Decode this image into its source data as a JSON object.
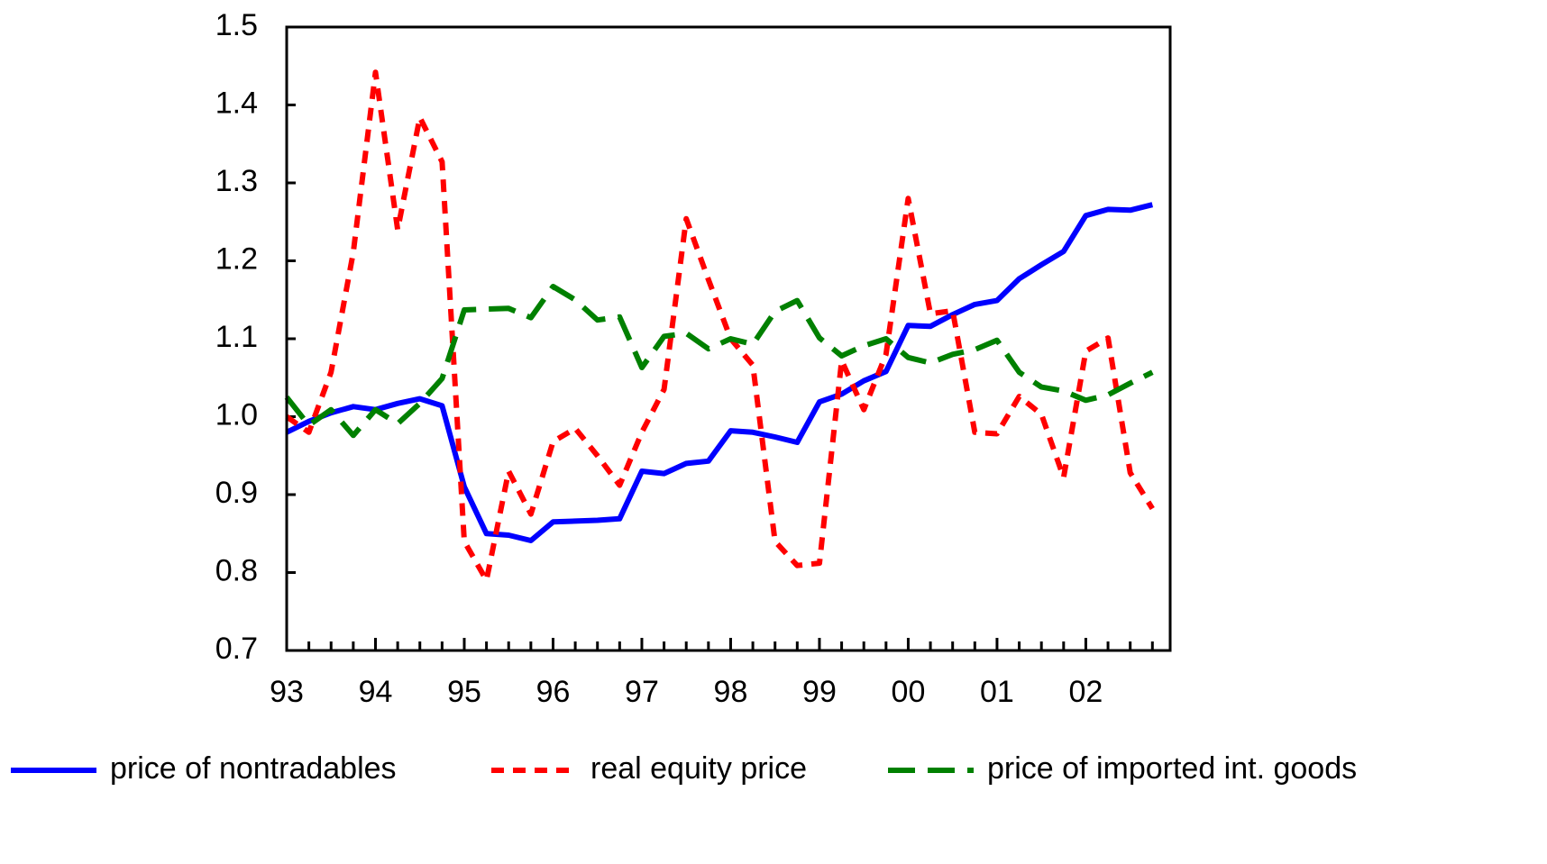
{
  "chart_data": {
    "type": "line",
    "categories": [
      "93",
      null,
      null,
      null,
      "94",
      null,
      null,
      null,
      "95",
      null,
      null,
      null,
      "96",
      null,
      null,
      null,
      "97",
      null,
      null,
      null,
      "98",
      null,
      null,
      null,
      "99",
      null,
      null,
      null,
      "00",
      null,
      null,
      null,
      "01",
      null,
      null,
      null,
      "02",
      null,
      null,
      null
    ],
    "series": [
      {
        "name": "price of nontradables",
        "color": "#0000ff",
        "dash": "solid",
        "values": [
          0.98,
          0.994,
          1.005,
          1.013,
          1.009,
          1.017,
          1.023,
          1.014,
          0.91,
          0.85,
          0.848,
          0.841,
          0.865,
          0.866,
          0.867,
          0.869,
          0.93,
          0.927,
          0.94,
          0.943,
          0.982,
          0.98,
          0.974,
          0.967,
          1.019,
          1.029,
          1.046,
          1.058,
          1.117,
          1.116,
          1.131,
          1.144,
          1.149,
          1.177,
          1.195,
          1.212,
          1.258,
          1.266,
          1.265,
          1.272
        ]
      },
      {
        "name": "real equity price",
        "color": "#ff0000",
        "dash": "short",
        "values": [
          1.0,
          0.98,
          1.057,
          1.211,
          1.442,
          1.24,
          1.384,
          1.327,
          0.84,
          0.79,
          0.93,
          0.875,
          0.968,
          0.985,
          0.95,
          0.912,
          0.98,
          1.035,
          1.254,
          1.176,
          1.1,
          1.066,
          0.84,
          0.809,
          0.812,
          1.072,
          1.009,
          1.08,
          1.28,
          1.132,
          1.136,
          0.98,
          0.978,
          1.026,
          1.003,
          0.922,
          1.084,
          1.101,
          0.928,
          0.882
        ]
      },
      {
        "name": "price of imported int. goods",
        "color": "#008000",
        "dash": "long",
        "values": [
          1.025,
          0.989,
          1.009,
          0.976,
          1.009,
          0.991,
          1.017,
          1.049,
          1.137,
          1.138,
          1.139,
          1.127,
          1.167,
          1.15,
          1.124,
          1.128,
          1.063,
          1.103,
          1.107,
          1.087,
          1.1,
          1.093,
          1.135,
          1.149,
          1.101,
          1.078,
          1.091,
          1.1,
          1.076,
          1.069,
          1.08,
          1.086,
          1.098,
          1.057,
          1.038,
          1.033,
          1.021,
          1.028,
          1.043,
          1.057
        ]
      }
    ],
    "ylim": [
      0.7,
      1.5
    ],
    "yticks": [
      0.7,
      0.8,
      0.9,
      {
        "value": 1,
        "label": "1.0"
      },
      1.1,
      1.2,
      1.3,
      1.4,
      1.5
    ],
    "legend": "bottom"
  }
}
